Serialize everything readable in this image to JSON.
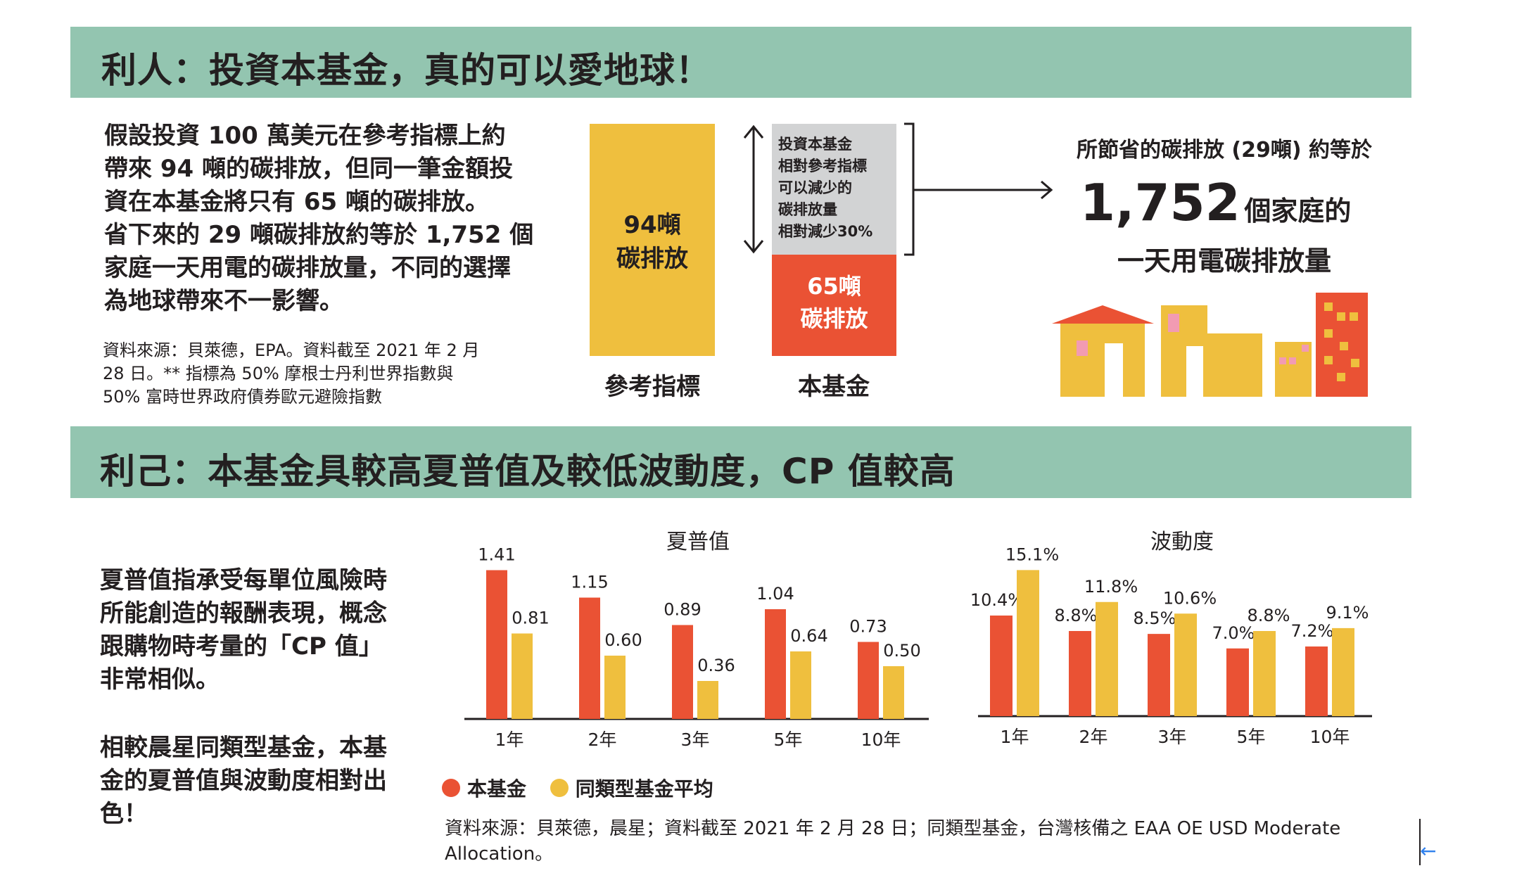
{
  "section1": {
    "title": "利人：投資本基金，真的可以愛地球！",
    "paragraph_lines": [
      "假設投資 100 萬美元在參考指標上約",
      "帶來 94 噸的碳排放，但同一筆金額投",
      "資在本基金將只有 65 噸的碳排放。",
      "省下來的 29 噸碳排放約等於 1,752 個",
      "家庭一天用電的碳排放量，不同的選擇",
      "為地球帶來不一影響。"
    ],
    "source_lines": [
      "資料來源：貝萊德，EPA。資料截至 2021 年 2 月",
      "28 日。** 指標為 50% 摩根士丹利世界指數與",
      "50% 富時世界政府債券歐元避險指數"
    ],
    "benchmark_bar": {
      "label_line1": "94噸",
      "label_line2": "碳排放",
      "caption": "參考指標",
      "color": "#efbf3e"
    },
    "fund_bar": {
      "label_line1": "65噸",
      "label_line2": "碳排放",
      "caption": "本基金",
      "color": "#ea5234"
    },
    "reduction_box_lines": [
      "投資本基金",
      "相對參考指標",
      "可以減少的",
      "碳排放量",
      "相對減少30%"
    ],
    "equivalent": {
      "heading": "所節省的碳排放 (29噸) 約等於",
      "number": "1,752",
      "unit": "個家庭的",
      "line2": "一天用電碳排放量"
    }
  },
  "section2": {
    "title": "利己：本基金具較高夏普值及較低波動度，CP 值較高",
    "para1_lines": [
      "夏普值指承受每單位風險時",
      "所能創造的報酬表現，概念",
      "跟購物時考量的「CP 值」",
      "非常相似。"
    ],
    "para2_lines": [
      "相較晨星同類型基金，本基",
      "金的夏普值與波動度相對出",
      "色！"
    ],
    "legend": [
      {
        "label": "本基金",
        "color": "#ea5234"
      },
      {
        "label": "同類型基金平均",
        "color": "#efbf3e"
      }
    ],
    "source_lines": [
      "資料來源：貝萊德，晨星；資料截至 2021 年 2 月 28 日；同類型基金，台灣核備之 EAA OE USD Moderate",
      "Allocation。"
    ]
  },
  "colors": {
    "fund": "#ea5234",
    "peer": "#efbf3e",
    "grey_box": "#d2d3d4",
    "banner": "#93c5b0"
  },
  "chart_data": [
    {
      "type": "bar",
      "title": "夏普值",
      "categories": [
        "1年",
        "2年",
        "3年",
        "5年",
        "10年"
      ],
      "series": [
        {
          "name": "本基金",
          "values": [
            1.41,
            1.15,
            0.89,
            1.04,
            0.73
          ],
          "labels": [
            "1.41",
            "1.15",
            "0.89",
            "1.04",
            "0.73"
          ]
        },
        {
          "name": "同類型基金平均",
          "values": [
            0.81,
            0.6,
            0.36,
            0.64,
            0.5
          ],
          "labels": [
            "0.81",
            "0.60",
            "0.36",
            "0.64",
            "0.50"
          ]
        }
      ],
      "ylim": [
        0,
        1.5
      ],
      "grid": false
    },
    {
      "type": "bar",
      "title": "波動度",
      "categories": [
        "1年",
        "2年",
        "3年",
        "5年",
        "10年"
      ],
      "series": [
        {
          "name": "本基金",
          "values": [
            10.4,
            8.8,
            8.5,
            7.0,
            7.2
          ],
          "labels": [
            "10.4%",
            "8.8%",
            "8.5%",
            "7.0%",
            "7.2%"
          ]
        },
        {
          "name": "同類型基金平均",
          "values": [
            15.1,
            11.8,
            10.6,
            8.8,
            9.1
          ],
          "labels": [
            "15.1%",
            "11.8%",
            "10.6%",
            "8.8%",
            "9.1%"
          ]
        }
      ],
      "ylim": [
        0,
        16
      ],
      "grid": false
    }
  ]
}
